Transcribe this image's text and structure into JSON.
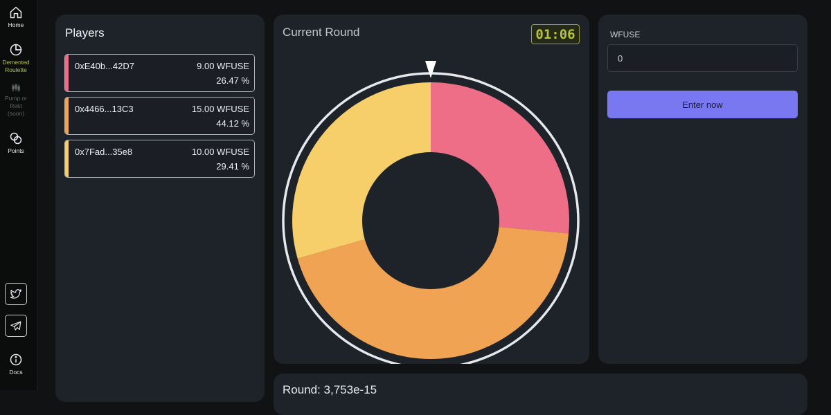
{
  "sidebar": {
    "home_label": "Home",
    "roulette_label": "Demented\nRoulette",
    "pump_label": "Pump or\nRekt\n(soon)",
    "points_label": "Points",
    "docs_label": "Docs"
  },
  "players": {
    "title": "Players",
    "items": [
      {
        "address": "0xE40b...42D7",
        "amount": "9.00 WFUSE",
        "percent": "26.47 %",
        "color": "#ee6e87"
      },
      {
        "address": "0x4466...13C3",
        "amount": "15.00 WFUSE",
        "percent": "44.12 %",
        "color": "#f0a352"
      },
      {
        "address": "0x7Fad...35e8",
        "amount": "10.00 WFUSE",
        "percent": "29.41 %",
        "color": "#f6cf6a"
      }
    ]
  },
  "round": {
    "title": "Current Round",
    "timer": "01:06",
    "shares": [
      26.47,
      44.12,
      29.41
    ],
    "colors": [
      "#ee6e87",
      "#f0a352",
      "#f6cf6a"
    ]
  },
  "bet": {
    "label": "WFUSE",
    "input_value": "0",
    "enter_label": "Enter now"
  },
  "bottom": {
    "title": "Round: 3,753e-15"
  }
}
